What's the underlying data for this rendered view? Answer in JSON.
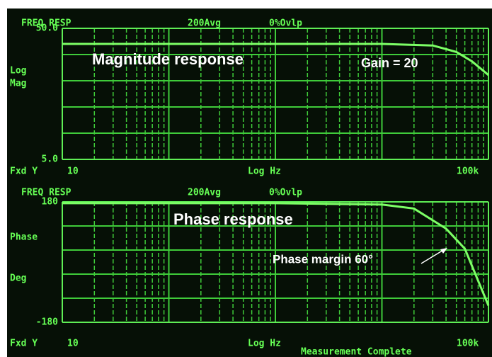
{
  "chart_data": [
    {
      "type": "line",
      "title": "FREQ RESP",
      "averaging": "200Avg",
      "overlap": "0%Ovlp",
      "ylabel_lines": [
        "Log",
        "Mag"
      ],
      "xlabel": "Log Hz",
      "scale_mode": "Fxd Y",
      "xscale": "log",
      "yscale": "log",
      "xlim": [
        10,
        100000
      ],
      "xticks": [
        10,
        {
          "value": 100000,
          "label": "100k"
        }
      ],
      "ylim": [
        5,
        50
      ],
      "yticks": [
        {
          "value": 5,
          "label": "5.0"
        },
        {
          "value": 50,
          "label": "50.0"
        }
      ],
      "x": [
        10,
        100,
        1000,
        10000,
        30000,
        50000,
        70000,
        100000
      ],
      "values": [
        38,
        38,
        38,
        38,
        37,
        33,
        28,
        22
      ],
      "color": "#7dff66",
      "annotations": [
        "Magnitude response",
        "Gain = 20"
      ]
    },
    {
      "type": "line",
      "title": "FREQ RESP",
      "averaging": "200Avg",
      "overlap": "0%Ovlp",
      "ylabel_lines": [
        "Phase",
        "Deg"
      ],
      "xlabel": "Log Hz",
      "scale_mode": "Fxd Y",
      "xscale": "log",
      "yscale": "linear",
      "xlim": [
        10,
        100000
      ],
      "xticks": [
        10,
        {
          "value": 100000,
          "label": "100k"
        }
      ],
      "ylim": [
        -180,
        180
      ],
      "yticks": [
        -180,
        180
      ],
      "x": [
        10,
        1000,
        10000,
        20000,
        40000,
        60000,
        100000
      ],
      "values": [
        176,
        176,
        172,
        160,
        100,
        40,
        -130
      ],
      "color": "#7dff66",
      "annotations": [
        "Phase response",
        "Phase margin 60°"
      ],
      "status": "Measurement Complete"
    }
  ]
}
